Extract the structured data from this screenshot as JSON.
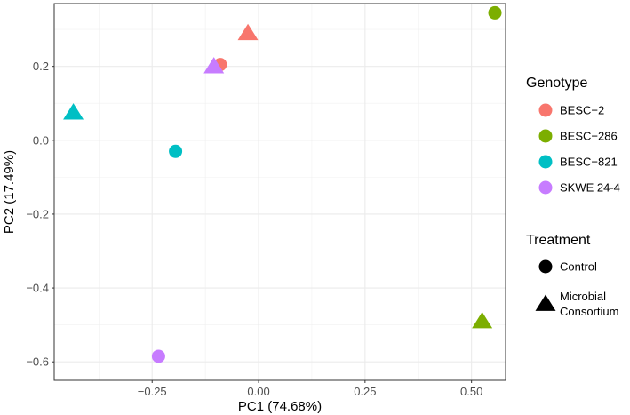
{
  "chart_data": {
    "type": "scatter",
    "xlabel": "PC1 (74.68%)",
    "ylabel": "PC2 (17.49%)",
    "xlim": [
      -0.48,
      0.58
    ],
    "ylim": [
      -0.65,
      0.37
    ],
    "x_ticks": [
      -0.25,
      0.0,
      0.25,
      0.5
    ],
    "x_tick_labels": [
      "−0.25",
      "0.00",
      "0.25",
      "0.50"
    ],
    "y_ticks": [
      -0.6,
      -0.4,
      -0.2,
      0.0,
      0.2
    ],
    "y_tick_labels": [
      "−0.6",
      "−0.4",
      "−0.2",
      "0.0",
      "0.2"
    ],
    "grid": true,
    "legend_placement": "right",
    "color_legend": {
      "title": "Genotype",
      "items": [
        {
          "label": "BESC−2",
          "color": "#F8766D"
        },
        {
          "label": "BESC−286",
          "color": "#7CAE00"
        },
        {
          "label": "BESC−821",
          "color": "#00BFC4"
        },
        {
          "label": "SKWE 24-4",
          "color": "#C77CFF"
        }
      ]
    },
    "shape_legend": {
      "title": "Treatment",
      "items": [
        {
          "label": [
            "Control"
          ],
          "shape": "circle"
        },
        {
          "label": [
            "Microbial",
            "Consortium"
          ],
          "shape": "triangle"
        }
      ]
    },
    "points": [
      {
        "x": -0.09,
        "y": 0.205,
        "genotype": "BESC−2",
        "treatment": "Control"
      },
      {
        "x": -0.025,
        "y": 0.29,
        "genotype": "BESC−2",
        "treatment": "Microbial Consortium"
      },
      {
        "x": 0.555,
        "y": 0.345,
        "genotype": "BESC−286",
        "treatment": "Control"
      },
      {
        "x": 0.525,
        "y": -0.49,
        "genotype": "BESC−286",
        "treatment": "Microbial Consortium"
      },
      {
        "x": -0.195,
        "y": -0.03,
        "genotype": "BESC−821",
        "treatment": "Control"
      },
      {
        "x": -0.435,
        "y": 0.075,
        "genotype": "BESC−821",
        "treatment": "Microbial Consortium"
      },
      {
        "x": -0.235,
        "y": -0.585,
        "genotype": "SKWE 24-4",
        "treatment": "Control"
      },
      {
        "x": -0.105,
        "y": 0.2,
        "genotype": "SKWE 24-4",
        "treatment": "Microbial Consortium"
      }
    ]
  }
}
